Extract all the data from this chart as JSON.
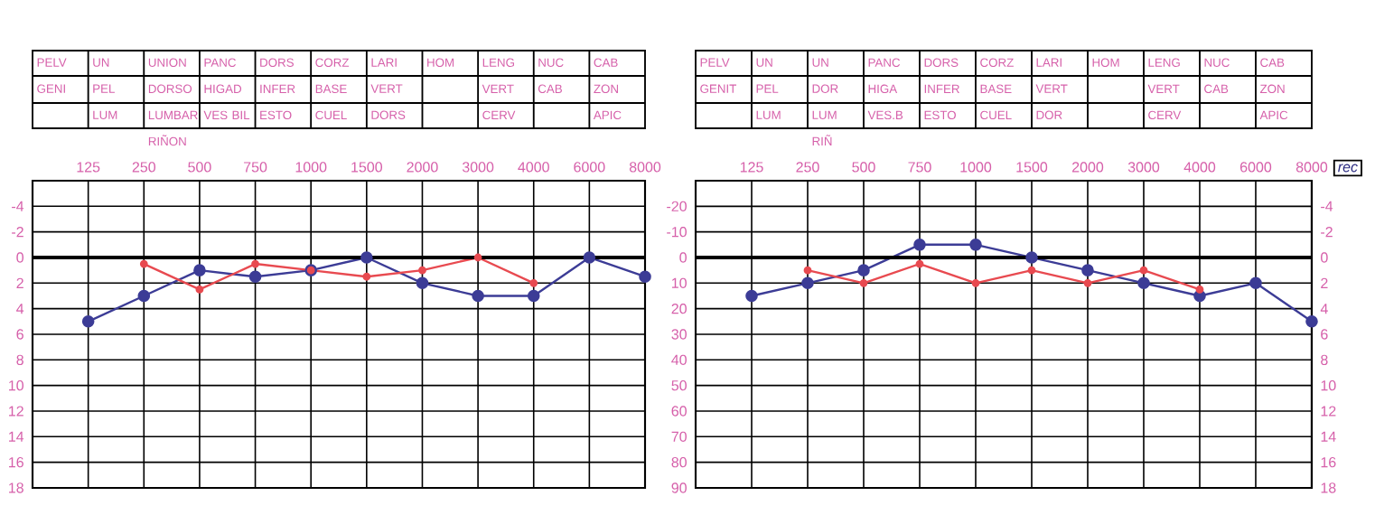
{
  "chart_data": [
    {
      "type": "line",
      "categories": [
        "125",
        "250",
        "500",
        "750",
        "1000",
        "1500",
        "2000",
        "3000",
        "4000",
        "6000",
        "8000"
      ],
      "ylim": [
        18,
        -6
      ],
      "yticks": [
        -4,
        -2,
        0,
        2,
        4,
        6,
        8,
        10,
        12,
        14,
        16,
        18
      ],
      "grid": true,
      "marker": "circle",
      "line_style": "solid",
      "ref_lines": [
        {
          "axis": "y",
          "value": 0
        }
      ],
      "annotations": [
        "PELV GENI",
        "UN PEL LUM",
        "UNION DORSO LUMBAR RIÑON",
        "PANC HIGAD VES BIL",
        "DORS INFER ESTO",
        "CORZ BASE CUEL",
        "LARI VERT DORS",
        "HOM",
        "LENG VERT CERV",
        "NUC CAB",
        "CAB ZON APIC"
      ],
      "series": [
        {
          "color": "#3c3c96",
          "values": [
            5,
            3,
            1,
            1.5,
            1,
            0,
            2,
            3,
            3,
            0,
            1.5
          ]
        },
        {
          "color": "#e84a50",
          "values": [
            null,
            0.5,
            2.5,
            0.5,
            1,
            1.5,
            1,
            0,
            2,
            null,
            null
          ]
        }
      ]
    },
    {
      "type": "line",
      "categories": [
        "125",
        "250",
        "500",
        "750",
        "1000",
        "1500",
        "2000",
        "3000",
        "4000",
        "6000",
        "8000"
      ],
      "ylim": [
        90,
        -30
      ],
      "yticks": [
        -20,
        -10,
        0,
        10,
        20,
        30,
        40,
        50,
        60,
        70,
        80,
        90
      ],
      "y2lim": [
        18,
        -6
      ],
      "y2ticks": [
        -4,
        -2,
        0,
        2,
        4,
        6,
        8,
        10,
        12,
        14,
        16,
        18
      ],
      "grid": true,
      "marker": "circle",
      "line_style": "solid",
      "ref_lines": [
        {
          "axis": "y2",
          "value": 0
        }
      ],
      "annotations": [
        "PELV GENIT",
        "UN PEL LUM",
        "UN DOR LUM RIÑ",
        "PANC HIGA VES.B",
        "DORS INFER ESTO",
        "CORZ BASE CUEL",
        "LARI VERT DOR",
        "HOM",
        "LENG VERT CERV",
        "NUC CAB",
        "CAB ZON APIC",
        "rec"
      ],
      "series": [
        {
          "color": "#3c3c96",
          "axis": "y2",
          "values": [
            3,
            2,
            1,
            -1,
            -1,
            0,
            1,
            2,
            3,
            2,
            5
          ]
        },
        {
          "color": "#e84a50",
          "axis": "y2",
          "values": [
            null,
            1,
            2,
            0.5,
            2,
            1,
            2,
            1,
            2.5,
            null,
            null
          ]
        }
      ]
    }
  ]
}
